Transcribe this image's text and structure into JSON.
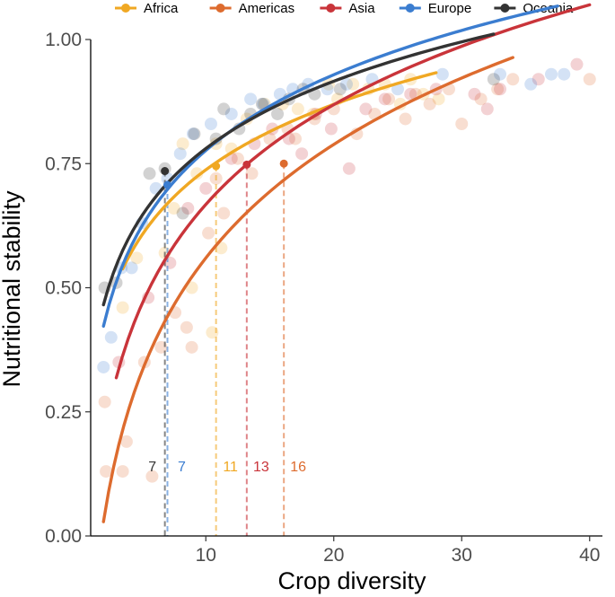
{
  "chart_data": {
    "type": "scatter",
    "title": "",
    "xlabel": "Crop diversity",
    "ylabel": "Nutritional stability",
    "xlim": [
      1,
      41
    ],
    "ylim": [
      0,
      1
    ],
    "x_ticks": [
      10,
      20,
      30,
      40
    ],
    "x_tick_labels": [
      "10",
      "20",
      "30",
      "40"
    ],
    "y_ticks": [
      0,
      0.25,
      0.5,
      0.75,
      1.0
    ],
    "y_tick_labels": [
      "0.00",
      "0.25",
      "0.50",
      "0.75",
      "1.00"
    ],
    "legend_position": "top",
    "threshold_y": 0.75,
    "series": [
      {
        "name": "Africa",
        "color": "#f0a823",
        "curve": {
          "x_min": 3.5,
          "x_max": 28,
          "a": 0.3,
          "b": 0.19
        },
        "threshold": {
          "x": 10.8,
          "y": 0.745,
          "label": "11"
        },
        "points": [
          [
            3.5,
            0.46
          ],
          [
            4.6,
            0.56
          ],
          [
            6.8,
            0.57
          ],
          [
            7.5,
            0.66
          ],
          [
            8.2,
            0.79
          ],
          [
            8.9,
            0.5
          ],
          [
            9.3,
            0.73
          ],
          [
            10.5,
            0.41
          ],
          [
            10.8,
            0.79
          ],
          [
            11.2,
            0.58
          ],
          [
            12.0,
            0.78
          ],
          [
            13.2,
            0.84
          ],
          [
            14.6,
            0.87
          ],
          [
            16.0,
            0.87
          ],
          [
            17.2,
            0.86
          ],
          [
            18.4,
            0.85
          ],
          [
            19.6,
            0.91
          ],
          [
            20.3,
            0.88
          ],
          [
            21.5,
            0.91
          ],
          [
            22.7,
            0.9
          ],
          [
            24.0,
            0.91
          ],
          [
            25.2,
            0.87
          ],
          [
            26.0,
            0.92
          ],
          [
            27.0,
            0.89
          ],
          [
            28.2,
            0.88
          ]
        ]
      },
      {
        "name": "Americas",
        "color": "#dd6b2e",
        "curve": {
          "x_min": 2.0,
          "x_max": 34,
          "a": -0.2,
          "b": 0.33
        },
        "threshold": {
          "x": 16.1,
          "y": 0.75,
          "label": "16"
        },
        "points": [
          [
            2.2,
            0.13
          ],
          [
            2.1,
            0.27
          ],
          [
            3.5,
            0.13
          ],
          [
            3.8,
            0.19
          ],
          [
            5.2,
            0.35
          ],
          [
            5.8,
            0.12
          ],
          [
            6.5,
            0.38
          ],
          [
            7.6,
            0.45
          ],
          [
            8.5,
            0.42
          ],
          [
            8.9,
            0.38
          ],
          [
            10.2,
            0.61
          ],
          [
            10.8,
            0.72
          ],
          [
            11.4,
            0.65
          ],
          [
            12.5,
            0.76
          ],
          [
            13.6,
            0.73
          ],
          [
            15.0,
            0.8
          ],
          [
            16.4,
            0.82
          ],
          [
            17.0,
            0.8
          ],
          [
            18.5,
            0.84
          ],
          [
            20.0,
            0.86
          ],
          [
            21.8,
            0.81
          ],
          [
            23.2,
            0.85
          ],
          [
            24.3,
            0.88
          ],
          [
            25.6,
            0.84
          ],
          [
            26.4,
            0.89
          ],
          [
            27.5,
            0.87
          ],
          [
            29.0,
            0.9
          ],
          [
            30.0,
            0.83
          ],
          [
            31.5,
            0.88
          ],
          [
            32.8,
            0.9
          ],
          [
            34.0,
            0.92
          ],
          [
            40.0,
            0.92
          ]
        ]
      },
      {
        "name": "Asia",
        "color": "#c9343a",
        "curve": {
          "x_min": 3.0,
          "x_max": 40,
          "a": 0.0,
          "b": 0.29
        },
        "threshold": {
          "x": 13.2,
          "y": 0.748,
          "label": "13"
        },
        "points": [
          [
            3.2,
            0.35
          ],
          [
            5.5,
            0.48
          ],
          [
            7.2,
            0.55
          ],
          [
            8.6,
            0.66
          ],
          [
            10.0,
            0.7
          ],
          [
            12.0,
            0.76
          ],
          [
            13.8,
            0.79
          ],
          [
            15.2,
            0.82
          ],
          [
            16.5,
            0.8
          ],
          [
            17.5,
            0.77
          ],
          [
            18.6,
            0.85
          ],
          [
            19.8,
            0.82
          ],
          [
            21.2,
            0.74
          ],
          [
            22.5,
            0.86
          ],
          [
            24.0,
            0.88
          ],
          [
            26.0,
            0.89
          ],
          [
            28.0,
            0.9
          ],
          [
            31.0,
            0.89
          ],
          [
            32.0,
            0.86
          ],
          [
            33.0,
            0.9
          ],
          [
            36.0,
            0.92
          ],
          [
            39.0,
            0.95
          ]
        ]
      },
      {
        "name": "Europe",
        "color": "#3b7dd0",
        "curve": {
          "x_min": 2.0,
          "x_max": 37.5,
          "a": 0.27,
          "b": 0.22
        },
        "threshold": {
          "x": 7.0,
          "y": 0.707,
          "label": "7"
        },
        "points": [
          [
            2.0,
            0.34
          ],
          [
            2.6,
            0.4
          ],
          [
            3.4,
            0.54
          ],
          [
            4.2,
            0.54
          ],
          [
            5.0,
            0.63
          ],
          [
            6.1,
            0.7
          ],
          [
            7.0,
            0.72
          ],
          [
            8.0,
            0.77
          ],
          [
            9.0,
            0.81
          ],
          [
            10.4,
            0.83
          ],
          [
            12.0,
            0.85
          ],
          [
            13.5,
            0.88
          ],
          [
            14.5,
            0.87
          ],
          [
            15.8,
            0.89
          ],
          [
            16.8,
            0.9
          ],
          [
            18.0,
            0.91
          ],
          [
            19.5,
            0.9
          ],
          [
            21.0,
            0.91
          ],
          [
            23.0,
            0.92
          ],
          [
            25.0,
            0.9
          ],
          [
            28.5,
            0.93
          ],
          [
            33.0,
            0.93
          ],
          [
            35.4,
            0.91
          ],
          [
            37.0,
            0.93
          ],
          [
            38.0,
            0.93
          ]
        ]
      },
      {
        "name": "Oceania",
        "color": "#333333",
        "curve": {
          "x_min": 2.0,
          "x_max": 32.5,
          "a": 0.33,
          "b": 0.1956
        },
        "threshold": {
          "x": 6.8,
          "y": 0.735,
          "label": "7"
        },
        "points": [
          [
            2.1,
            0.5
          ],
          [
            3.0,
            0.51
          ],
          [
            5.6,
            0.73
          ],
          [
            6.8,
            0.74
          ],
          [
            8.2,
            0.65
          ],
          [
            9.1,
            0.81
          ],
          [
            10.8,
            0.8
          ],
          [
            11.4,
            0.86
          ],
          [
            12.6,
            0.82
          ],
          [
            13.5,
            0.85
          ],
          [
            14.4,
            0.87
          ],
          [
            15.6,
            0.85
          ],
          [
            16.5,
            0.88
          ],
          [
            17.6,
            0.9
          ],
          [
            18.5,
            0.89
          ],
          [
            20.5,
            0.9
          ],
          [
            32.5,
            0.92
          ]
        ]
      }
    ]
  }
}
